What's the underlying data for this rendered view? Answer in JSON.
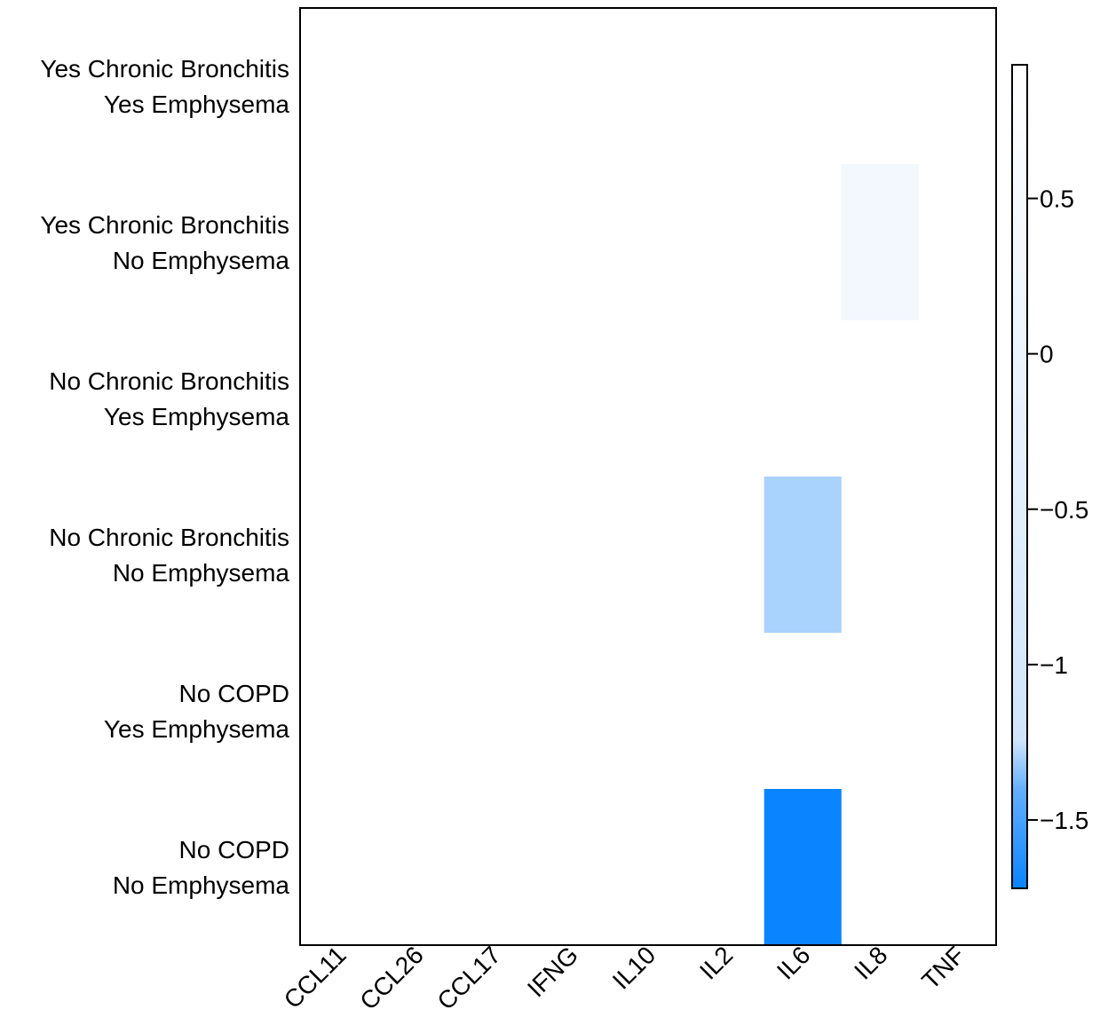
{
  "chart_data": {
    "type": "heatmap",
    "title": "",
    "xlabel": "",
    "ylabel": "",
    "x_categories": [
      "CCL11",
      "CCL26",
      "CCL17",
      "IFNG",
      "IL10",
      "IL2",
      "IL6",
      "IL8",
      "TNF"
    ],
    "y_categories": [
      [
        "Yes Chronic Bronchitis",
        "Yes Emphysema"
      ],
      [
        "Yes Chronic Bronchitis",
        "No Emphysema"
      ],
      [
        "No Chronic Bronchitis",
        "Yes Emphysema"
      ],
      [
        "No Chronic Bronchitis",
        "No Emphysema"
      ],
      [
        "No COPD",
        "Yes Emphysema"
      ],
      [
        "No COPD",
        "No Emphysema"
      ]
    ],
    "cells": [
      {
        "row": 1,
        "col": "IL8",
        "value": 0.35
      },
      {
        "row": 3,
        "col": "IL6",
        "value": -1.3
      },
      {
        "row": 5,
        "col": "IL6",
        "value": -1.72
      }
    ],
    "colorbar": {
      "range": [
        -1.72,
        0.93
      ],
      "ticks": [
        0.5,
        0,
        -0.5,
        -1,
        -1.5
      ],
      "tick_labels": [
        "0.5",
        "0",
        "−0.5",
        "−1",
        "−1.5"
      ],
      "colors": {
        "high": "#ffffff",
        "low": "#0a84ff"
      }
    },
    "grid": false,
    "legend": "right"
  }
}
